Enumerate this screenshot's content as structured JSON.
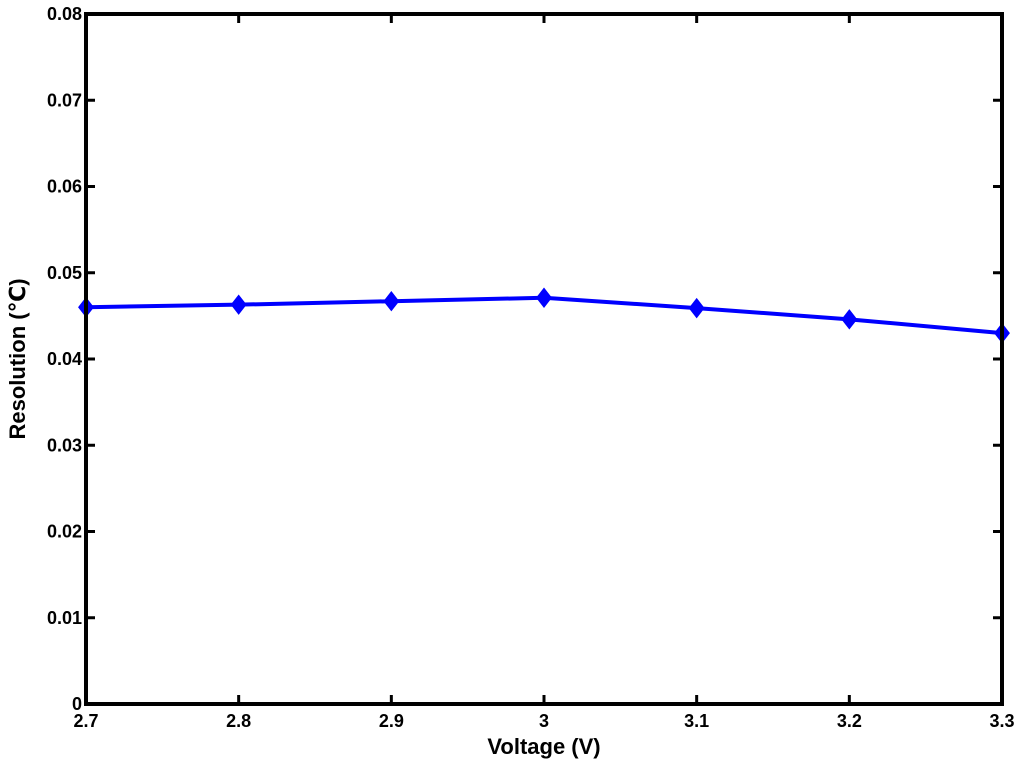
{
  "chart_data": {
    "type": "line",
    "title": "",
    "xlabel": "Voltage (V)",
    "ylabel": "Resolution (℃)",
    "xlim": [
      2.7,
      3.3
    ],
    "ylim": [
      0,
      0.08
    ],
    "x_ticks": [
      "2.7",
      "2.8",
      "2.9",
      "3",
      "3.1",
      "3.2",
      "3.3"
    ],
    "y_ticks": [
      "0",
      "0.01",
      "0.02",
      "0.03",
      "0.04",
      "0.05",
      "0.06",
      "0.07",
      "0.08"
    ],
    "grid": false,
    "series": [
      {
        "x": [
          2.7,
          2.8,
          2.9,
          3.0,
          3.1,
          3.2,
          3.3
        ],
        "values": [
          0.046,
          0.0463,
          0.0467,
          0.0471,
          0.0459,
          0.0446,
          0.043
        ],
        "color": "#0000ff",
        "marker": "diamond"
      }
    ]
  }
}
